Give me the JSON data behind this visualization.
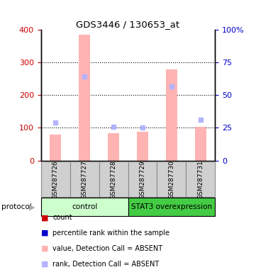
{
  "title": "GDS3446 / 130653_at",
  "samples": [
    "GSM287726",
    "GSM287727",
    "GSM287728",
    "GSM287729",
    "GSM287730",
    "GSM287731"
  ],
  "bar_values": [
    80,
    385,
    83,
    87,
    280,
    103
  ],
  "rank_values": [
    117,
    257,
    103,
    101,
    227,
    125
  ],
  "ylim_left": [
    0,
    400
  ],
  "ylim_right": [
    0,
    100
  ],
  "yticks_left": [
    0,
    100,
    200,
    300,
    400
  ],
  "ytick_labels_left": [
    "0",
    "100",
    "200",
    "300",
    "400"
  ],
  "yticks_right": [
    0,
    25,
    50,
    75,
    100
  ],
  "ytick_labels_right": [
    "0",
    "25",
    "50",
    "75",
    "100%"
  ],
  "bar_color": "#ffb3b3",
  "rank_color": "#b3b3ff",
  "left_tick_color": "#cc0000",
  "right_tick_color": "#0000cc",
  "control_group_color": "#ccffcc",
  "overexpression_group_color": "#44cc44",
  "label_box_color": "#d0d0d0",
  "label_box_border": "#888888",
  "legend_count_color": "#cc0000",
  "legend_rank_color": "#0000cc",
  "legend_bar_color": "#ffb3b3",
  "legend_rank_absent_color": "#b3b3ff"
}
